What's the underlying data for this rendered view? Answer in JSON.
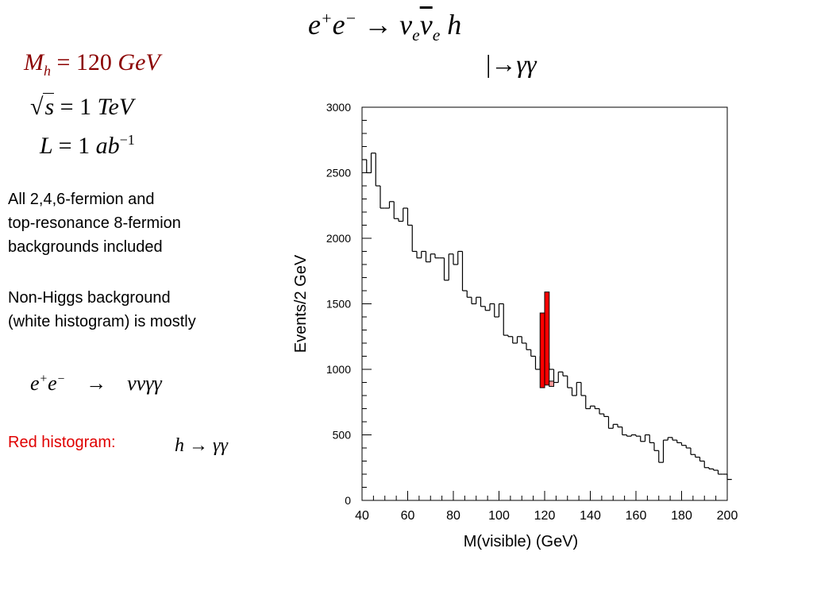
{
  "header": {
    "process_eq": {
      "e1": "e",
      "p": "+",
      "e2": "e",
      "m": "−",
      "arrow": "→",
      "nu": "ν",
      "sub": "e",
      "nubar": "ν",
      "h": "h"
    },
    "decay_eq": {
      "bar": "|",
      "arrow": "→",
      "gg": "γγ"
    }
  },
  "params": {
    "mass": {
      "M": "M",
      "sub": "h",
      "eq": "=",
      "val": "120",
      "unit": "GeV"
    },
    "sqrts": {
      "s": "s",
      "eq": "=",
      "val": "1",
      "unit": "TeV"
    },
    "lumi": {
      "L": "L",
      "eq": "=",
      "val": "1",
      "unit": "ab",
      "exp": "−1"
    }
  },
  "notes": {
    "bkg_line1": "All 2,4,6-fermion and",
    "bkg_line2": "top-resonance 8-fermion",
    "bkg_line3": "backgrounds included",
    "nonhiggs_line1": "Non-Higgs background",
    "nonhiggs_line2": "(white histogram) is mostly"
  },
  "proc": {
    "e1": "e",
    "p": "+",
    "e2": "e",
    "m": "−",
    "arrow": "→",
    "final": "ννγγ"
  },
  "red": {
    "label": "Red histogram:",
    "h": "h",
    "arrow": "→",
    "gg": "γγ"
  },
  "colors": {
    "signal": "#ff0000",
    "background": "#ffffff",
    "line": "#000000",
    "signal_light": "#ff9999"
  },
  "chart_data": {
    "type": "bar",
    "xlabel": "M(visible) (GeV)",
    "ylabel": "Events/2 GeV",
    "xlim": [
      40,
      200
    ],
    "ylim": [
      0,
      3000
    ],
    "x_ticks": [
      40,
      60,
      80,
      100,
      120,
      140,
      160,
      180,
      200
    ],
    "y_ticks": [
      0,
      500,
      1000,
      1500,
      2000,
      2500,
      3000
    ],
    "bin_width": 2,
    "series": [
      {
        "name": "Non-Higgs background",
        "bin_start": 40,
        "values": [
          2600,
          2500,
          2650,
          2400,
          2230,
          2230,
          2280,
          2150,
          2130,
          2230,
          2100,
          1900,
          1850,
          1900,
          1820,
          1880,
          1850,
          1850,
          1680,
          1880,
          1800,
          1900,
          1600,
          1550,
          1500,
          1550,
          1480,
          1450,
          1500,
          1400,
          1500,
          1260,
          1250,
          1200,
          1250,
          1200,
          1150,
          1100,
          1000,
          1100,
          1050,
          1000,
          900,
          980,
          950,
          860,
          800,
          900,
          800,
          700,
          720,
          700,
          660,
          640,
          550,
          580,
          560,
          500,
          490,
          500,
          490,
          450,
          500,
          440,
          380,
          290,
          460,
          480,
          460,
          440,
          420,
          400,
          350,
          330,
          300,
          250,
          240,
          230,
          200,
          200,
          160
        ]
      },
      {
        "name": "h → γγ",
        "bins": [
          {
            "x": 118,
            "bottom": 860,
            "top": 1430
          },
          {
            "x": 120,
            "bottom": 880,
            "top": 1590
          },
          {
            "x": 122,
            "bottom": 870,
            "top": 910
          }
        ]
      }
    ]
  }
}
